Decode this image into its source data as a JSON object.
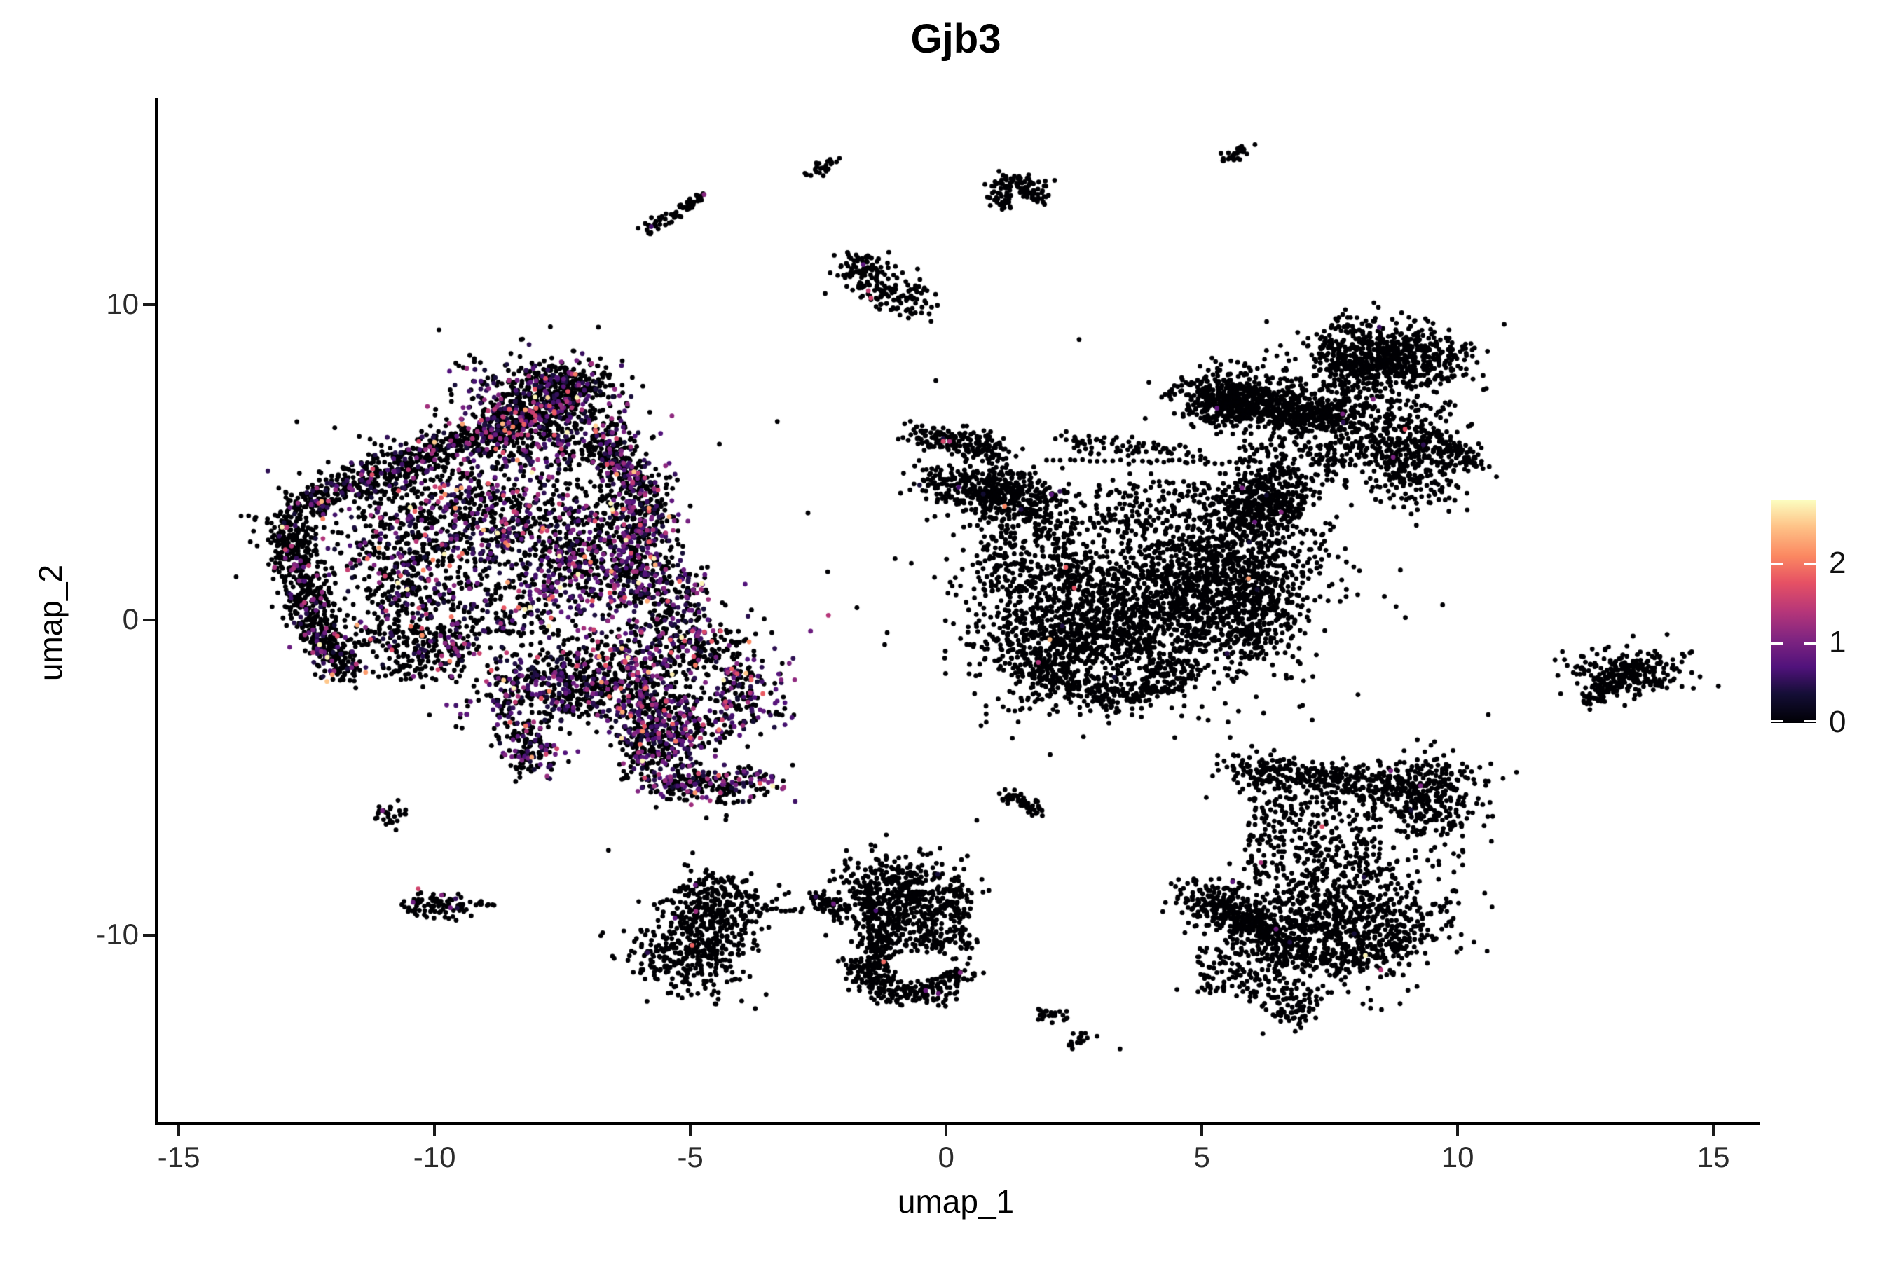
{
  "title": "Gjb3",
  "axes": {
    "x": {
      "label": "umap_1",
      "ticks": [
        -15,
        -10,
        -5,
        0,
        5,
        10,
        15
      ]
    },
    "y": {
      "label": "umap_2",
      "ticks": [
        -10,
        0,
        10
      ]
    }
  },
  "colorbar": {
    "ticks": [
      0,
      1,
      2
    ],
    "max": 2.8,
    "stops": [
      [
        0.0,
        "#000004"
      ],
      [
        0.13,
        "#140e36"
      ],
      [
        0.25,
        "#50127b"
      ],
      [
        0.38,
        "#812581"
      ],
      [
        0.5,
        "#b63679"
      ],
      [
        0.63,
        "#e65164"
      ],
      [
        0.75,
        "#fb8861"
      ],
      [
        0.88,
        "#fec287"
      ],
      [
        1.0,
        "#fcfdbf"
      ]
    ]
  },
  "chart_data": {
    "type": "scatter",
    "title": "Gjb3",
    "xlabel": "umap_1",
    "ylabel": "umap_2",
    "xlim": [
      -15.44,
      15.82
    ],
    "ylim": [
      -15.93,
      16.56
    ],
    "x_ticks": [
      -15,
      -10,
      -5,
      0,
      5,
      10,
      15
    ],
    "y_ticks": [
      -10,
      0,
      10
    ],
    "legend_position": "right",
    "grid": false,
    "point_radius": 3.4,
    "zero_color": "#000004",
    "expression_max": 2.8,
    "expression_scale": {
      "base": 0.3,
      "tail": 0.55,
      "cap": 2.75
    },
    "clusters": [
      {
        "t": "b",
        "n": 480,
        "x1": -12.75,
        "y1": 3.55,
        "x2": -9.1,
        "y2": 5.85,
        "sd": 0.28,
        "r": 0.18
      },
      {
        "t": "b",
        "n": 300,
        "x1": -9.1,
        "y1": 5.85,
        "x2": -7.4,
        "y2": 7.1,
        "sd": 0.3,
        "r": 0.22
      },
      {
        "t": "g",
        "n": 620,
        "x": -7.9,
        "y": 6.4,
        "sx": 0.85,
        "sy": 0.95,
        "r": 0.3
      },
      {
        "t": "g",
        "n": 190,
        "x": -7.5,
        "y": 7.6,
        "sx": 0.5,
        "sy": 0.3,
        "r": 0.2
      },
      {
        "t": "b",
        "n": 430,
        "x1": -12.95,
        "y1": 3.3,
        "x2": -12.35,
        "y2": -0.1,
        "sd": 0.26,
        "r": 0.1
      },
      {
        "t": "b",
        "n": 210,
        "x1": -12.45,
        "y1": -0.1,
        "x2": -11.7,
        "y2": -1.85,
        "sd": 0.22,
        "r": 0.15
      },
      {
        "t": "p",
        "pts": [
          [
            -12.0,
            -1.73,
            2.2
          ],
          [
            -11.62,
            -1.5,
            1.0
          ],
          [
            -12.3,
            -0.95,
            0.6
          ]
        ]
      },
      {
        "t": "b",
        "n": 300,
        "x1": -6.75,
        "y1": 5.95,
        "x2": -5.92,
        "y2": 3.8,
        "sd": 0.3,
        "r": 0.3
      },
      {
        "t": "b",
        "n": 290,
        "x1": -5.92,
        "y1": 3.8,
        "x2": -6.05,
        "y2": 0.9,
        "sd": 0.33,
        "r": 0.35
      },
      {
        "t": "g",
        "n": 500,
        "x": -9.9,
        "y": 3.6,
        "sx": 1.15,
        "sy": 1.0,
        "r": 0.3
      },
      {
        "t": "g",
        "n": 500,
        "x": -8.2,
        "y": 2.6,
        "sx": 1.2,
        "sy": 1.1,
        "r": 0.36
      },
      {
        "t": "g",
        "n": 400,
        "x": -6.9,
        "y": 1.7,
        "sx": 0.9,
        "sy": 1.0,
        "r": 0.42
      },
      {
        "t": "g",
        "n": 280,
        "x": -10.7,
        "y": 1.5,
        "sx": 0.8,
        "sy": 0.9,
        "r": 0.22
      },
      {
        "t": "u",
        "n": 220,
        "x": -9.3,
        "y": 0.35,
        "w": 3.6,
        "h": 1.7,
        "r": 0.28
      },
      {
        "t": "b",
        "n": 170,
        "x1": -11.9,
        "y1": -0.45,
        "x2": -9.2,
        "y2": -0.85,
        "sd": 0.3,
        "r": 0.2
      },
      {
        "t": "u",
        "n": 90,
        "x": -10.3,
        "y": -1.35,
        "w": 1.7,
        "h": 1.1,
        "r": 0.2
      },
      {
        "t": "u",
        "n": 150,
        "x": -5.35,
        "y": 0.5,
        "w": 1.5,
        "h": 2.0,
        "r": 0.42
      },
      {
        "t": "g",
        "n": 170,
        "x": -4.8,
        "y": -0.85,
        "sx": 0.5,
        "sy": 0.55,
        "r": 0.22
      },
      {
        "t": "g",
        "n": 430,
        "x": -7.8,
        "y": -2.1,
        "sx": 0.85,
        "sy": 0.65,
        "r": 0.36
      },
      {
        "t": "g",
        "n": 380,
        "x": -6.3,
        "y": -1.7,
        "sx": 0.8,
        "sy": 0.75,
        "r": 0.4
      },
      {
        "t": "b",
        "n": 250,
        "x1": -6.1,
        "y1": -2.6,
        "x2": -5.0,
        "y2": -4.15,
        "sd": 0.4,
        "r": 0.36
      },
      {
        "t": "a",
        "n": 360,
        "x": -4.7,
        "y": -4.15,
        "rad": 1.25,
        "a1": 150,
        "a2": 330,
        "sd": 0.3,
        "r": 0.33
      },
      {
        "t": "b",
        "n": 140,
        "x1": -8.35,
        "y1": -3.3,
        "x2": -7.95,
        "y2": -4.8,
        "sd": 0.28,
        "r": 0.28
      },
      {
        "t": "p",
        "pts": [
          [
            -8.1,
            -4.35,
            2.3
          ],
          [
            -7.8,
            -4.95,
            1.2
          ]
        ]
      },
      {
        "t": "b",
        "n": 120,
        "x1": -4.25,
        "y1": -3.6,
        "x2": -4.05,
        "y2": -1.35,
        "sd": 0.22,
        "r": 0.38
      },
      {
        "t": "u",
        "n": 90,
        "x": -5.4,
        "y": -3.1,
        "w": 1.4,
        "h": 1.5,
        "r": 0.38
      },
      {
        "t": "u",
        "n": 60,
        "x": -3.5,
        "y": -2.3,
        "w": 1.1,
        "h": 2.2,
        "r": 0.5
      },
      {
        "t": "p",
        "pts": [
          [
            -2.65,
            -0.35,
            0.9
          ],
          [
            -2.3,
            0.15,
            1.4
          ],
          [
            -3.2,
            -5.35,
            1.1
          ],
          [
            -2.95,
            -5.75,
            0.6
          ],
          [
            -3.35,
            -0.9,
            0.5
          ],
          [
            -3.0,
            -4.6,
            0
          ]
        ]
      },
      {
        "t": "b",
        "n": 65,
        "x1": -5.9,
        "y1": 12.35,
        "x2": -4.78,
        "y2": 13.42,
        "sd": 0.1,
        "r": 0.02
      },
      {
        "t": "p",
        "pts": [
          [
            -4.73,
            13.5,
            1.1
          ]
        ]
      },
      {
        "t": "b",
        "n": 26,
        "x1": -2.7,
        "y1": 14.1,
        "x2": -2.15,
        "y2": 14.62,
        "sd": 0.09,
        "r": 0
      },
      {
        "t": "a",
        "n": 120,
        "x": 1.35,
        "y": 13.55,
        "rad": 0.42,
        "a1": -40,
        "a2": 260,
        "sd": 0.15,
        "r": 0
      },
      {
        "t": "b",
        "n": 28,
        "x1": 5.35,
        "y1": 14.5,
        "x2": 5.95,
        "y2": 15.05,
        "sd": 0.09,
        "r": 0
      },
      {
        "t": "g",
        "n": 85,
        "x": -1.6,
        "y": 11.15,
        "sx": 0.27,
        "sy": 0.3,
        "r": 0
      },
      {
        "t": "b",
        "n": 110,
        "x1": -1.55,
        "y1": 10.75,
        "x2": -0.5,
        "y2": 10.0,
        "sd": 0.27,
        "r": 0
      },
      {
        "t": "p",
        "pts": [
          [
            -1.62,
            11.28,
            0.8
          ],
          [
            -1.52,
            10.45,
            1.5
          ],
          [
            -1.47,
            10.22,
            1.6
          ]
        ]
      },
      {
        "t": "b",
        "n": 190,
        "x1": -0.5,
        "y1": 5.95,
        "x2": 1.1,
        "y2": 5.3,
        "sd": 0.22,
        "r": 0.01
      },
      {
        "t": "row",
        "n": 30,
        "x1": 1.9,
        "x2": 6.2,
        "y": 5.02,
        "j": 0.07
      },
      {
        "t": "row",
        "n": 14,
        "x1": 0.35,
        "x2": 1.8,
        "y": 4.62,
        "j": 0.06
      },
      {
        "t": "b",
        "n": 250,
        "x1": -0.3,
        "y1": 4.45,
        "x2": 2.2,
        "y2": 3.75,
        "sd": 0.3,
        "r": 0.01
      },
      {
        "t": "g",
        "n": 180,
        "x": 0.95,
        "y": 3.95,
        "sx": 0.5,
        "sy": 0.45,
        "r": 0.01
      },
      {
        "t": "g",
        "n": 1450,
        "x": 3.9,
        "y": 0.7,
        "sx": 1.55,
        "sy": 1.45,
        "r": 0.004
      },
      {
        "t": "g",
        "n": 680,
        "x": 2.4,
        "y": -0.7,
        "sx": 1.0,
        "sy": 1.05,
        "r": 0.004
      },
      {
        "t": "g",
        "n": 480,
        "x": 5.4,
        "y": 1.6,
        "sx": 0.85,
        "sy": 0.95,
        "r": 0.004
      },
      {
        "t": "g",
        "n": 280,
        "x": 5.9,
        "y": 0.2,
        "sx": 0.6,
        "sy": 0.8,
        "r": 0.004
      },
      {
        "t": "a",
        "n": 250,
        "x": 3.3,
        "y": -0.9,
        "rad": 1.5,
        "a1": 195,
        "a2": 345,
        "sd": 0.25,
        "r": 0.004
      },
      {
        "t": "u",
        "n": 230,
        "x": 1.6,
        "y": 2.2,
        "w": 2.0,
        "h": 2.6,
        "r": 0.01
      },
      {
        "t": "u",
        "n": 190,
        "x": 4.6,
        "y": 3.6,
        "w": 3.4,
        "h": 1.6,
        "r": 0.005
      },
      {
        "t": "b",
        "n": 200,
        "x1": 5.9,
        "y1": 3.1,
        "x2": 6.6,
        "y2": 4.35,
        "sd": 0.35,
        "r": 0.005
      },
      {
        "t": "g",
        "n": 150,
        "x": 6.35,
        "y": 3.75,
        "sx": 0.5,
        "sy": 0.5,
        "r": 0.005
      },
      {
        "t": "b",
        "n": 680,
        "x1": 5.05,
        "y1": 7.1,
        "x2": 7.9,
        "y2": 6.35,
        "sd": 0.42,
        "r": 0.004
      },
      {
        "t": "g",
        "n": 260,
        "x": 5.6,
        "y": 7.0,
        "sx": 0.6,
        "sy": 0.5,
        "r": 0.004
      },
      {
        "t": "g",
        "n": 400,
        "x": 8.3,
        "y": 8.55,
        "sx": 0.7,
        "sy": 0.5,
        "r": 0.004
      },
      {
        "t": "b",
        "n": 110,
        "x1": 7.7,
        "y1": 7.5,
        "x2": 8.1,
        "y2": 8.2,
        "sd": 0.3,
        "r": 0
      },
      {
        "t": "g",
        "n": 280,
        "x": 9.1,
        "y": 8.1,
        "sx": 0.55,
        "sy": 0.5,
        "r": 0.004
      },
      {
        "t": "g",
        "n": 400,
        "x": 9.15,
        "y": 5.3,
        "sx": 0.55,
        "sy": 0.85,
        "r": 0.004
      },
      {
        "t": "b",
        "n": 55,
        "x1": 9.9,
        "y1": 5.5,
        "x2": 10.45,
        "y2": 4.85,
        "sd": 0.12,
        "r": 0
      },
      {
        "t": "u",
        "n": 210,
        "x": 7.6,
        "y": 6.0,
        "w": 2.6,
        "h": 2.2,
        "r": 0.004
      },
      {
        "t": "u",
        "n": 110,
        "x": 6.8,
        "y": 4.9,
        "w": 2.2,
        "h": 1.4,
        "r": 0.004
      },
      {
        "t": "b",
        "n": 80,
        "x1": 2.3,
        "y1": 5.75,
        "x2": 5.0,
        "y2": 5.25,
        "sd": 0.16,
        "r": 0
      },
      {
        "t": "g",
        "n": 250,
        "x": 13.35,
        "y": -1.7,
        "sx": 0.55,
        "sy": 0.42,
        "r": 0.004
      },
      {
        "t": "b",
        "n": 65,
        "x1": 12.6,
        "y1": -2.55,
        "x2": 13.05,
        "y2": -2.0,
        "sd": 0.13,
        "r": 0
      },
      {
        "t": "b",
        "n": 400,
        "x1": 5.6,
        "y1": -4.75,
        "x2": 9.0,
        "y2": -5.3,
        "sd": 0.3,
        "r": 0.004
      },
      {
        "t": "g",
        "n": 300,
        "x": 9.45,
        "y": -5.6,
        "sx": 0.5,
        "sy": 0.75,
        "r": 0.004
      },
      {
        "t": "b",
        "n": 360,
        "x1": 4.85,
        "y1": -8.75,
        "x2": 6.5,
        "y2": -9.9,
        "sd": 0.35,
        "r": 0.005
      },
      {
        "t": "g",
        "n": 850,
        "x": 7.8,
        "y": -9.5,
        "sx": 1.05,
        "sy": 0.95,
        "r": 0.004
      },
      {
        "t": "a",
        "n": 190,
        "x": 7.6,
        "y": -9.3,
        "rad": 1.6,
        "a1": 200,
        "a2": 330,
        "sd": 0.25,
        "r": 0
      },
      {
        "t": "u",
        "n": 280,
        "x": 7.2,
        "y": -6.9,
        "w": 2.6,
        "h": 2.6,
        "r": 0.004
      },
      {
        "t": "u",
        "n": 130,
        "x": 5.8,
        "y": -11.2,
        "w": 1.8,
        "h": 1.6,
        "r": 0.004
      },
      {
        "t": "g",
        "n": 85,
        "x": 6.75,
        "y": -12.2,
        "sx": 0.28,
        "sy": 0.35,
        "r": 0
      },
      {
        "t": "p",
        "pts": [
          [
            8.5,
            -11.1,
            1.4
          ],
          [
            6.45,
            -9.8,
            0.9
          ],
          [
            7.35,
            -6.55,
            1.7
          ],
          [
            5.6,
            -8.3,
            0.8
          ]
        ]
      },
      {
        "t": "g",
        "n": 290,
        "x": -4.55,
        "y": -9.1,
        "sx": 0.5,
        "sy": 0.55,
        "r": 0.004
      },
      {
        "t": "g",
        "n": 330,
        "x": -5.05,
        "y": -10.6,
        "sx": 0.55,
        "sy": 0.6,
        "r": 0.004
      },
      {
        "t": "row",
        "n": 15,
        "x1": -3.85,
        "x2": -2.75,
        "y": -9.2,
        "j": 0.06
      },
      {
        "t": "b",
        "n": 65,
        "x1": -2.55,
        "y1": -8.75,
        "x2": -2.0,
        "y2": -9.3,
        "sd": 0.12,
        "r": 0.01
      },
      {
        "t": "p",
        "pts": [
          [
            -4.9,
            -8.4,
            0.9
          ],
          [
            -5.3,
            -9.45,
            0.8
          ],
          [
            -2.2,
            -9.0,
            0.9
          ],
          [
            -2.05,
            -9.6,
            0
          ],
          [
            -1.85,
            -10.2,
            0
          ],
          [
            -2.35,
            -10.0,
            0
          ]
        ]
      },
      {
        "t": "g",
        "n": 230,
        "x": -0.95,
        "y": -8.3,
        "sx": 0.6,
        "sy": 0.5,
        "r": 0.004
      },
      {
        "t": "b",
        "n": 250,
        "x1": -1.5,
        "y1": -8.5,
        "x2": -1.27,
        "y2": -11.2,
        "sd": 0.2,
        "r": 0.004
      },
      {
        "t": "u",
        "n": 210,
        "x": -0.6,
        "y": -9.6,
        "w": 1.1,
        "h": 1.9,
        "r": 0.004
      },
      {
        "t": "a",
        "n": 250,
        "x": -0.7,
        "y": -10.9,
        "rad": 1.0,
        "a1": 170,
        "a2": 350,
        "sd": 0.22,
        "r": 0.008
      },
      {
        "t": "b",
        "n": 110,
        "x1": 0.15,
        "y1": -8.4,
        "x2": 0.3,
        "y2": -10.6,
        "sd": 0.18,
        "r": 0
      },
      {
        "t": "p",
        "pts": [
          [
            -0.4,
            -11.75,
            0.9
          ],
          [
            -0.15,
            -11.85,
            0.9
          ],
          [
            0.3,
            -7.6,
            0
          ],
          [
            -0.3,
            -7.4,
            0
          ]
        ]
      },
      {
        "t": "g",
        "n": 28,
        "x": -10.85,
        "y": -6.2,
        "sx": 0.18,
        "sy": 0.15,
        "r": 0
      },
      {
        "t": "p",
        "pts": [
          [
            -11.02,
            -6.05,
            1.0
          ]
        ]
      },
      {
        "t": "g",
        "n": 85,
        "x": -9.85,
        "y": -9.05,
        "sx": 0.42,
        "sy": 0.2,
        "r": 0.02
      },
      {
        "t": "row",
        "n": 7,
        "x1": -9.2,
        "x2": -8.8,
        "y": -9.03,
        "j": 0.05
      },
      {
        "t": "p",
        "pts": [
          [
            -10.32,
            -8.52,
            1.6
          ],
          [
            -10.42,
            -8.95,
            0.9
          ]
        ]
      },
      {
        "t": "b",
        "n": 40,
        "x1": 1.3,
        "y1": -5.6,
        "x2": 1.78,
        "y2": -6.02,
        "sd": 0.11,
        "r": 0
      },
      {
        "t": "g",
        "n": 18,
        "x": 1.27,
        "y": -5.62,
        "sx": 0.12,
        "sy": 0.1,
        "r": 0
      },
      {
        "t": "g",
        "n": 24,
        "x": 2.05,
        "y": -12.5,
        "sx": 0.2,
        "sy": 0.15,
        "r": 0
      },
      {
        "t": "g",
        "n": 16,
        "x": 2.62,
        "y": -13.3,
        "sx": 0.15,
        "sy": 0.11,
        "r": 0
      },
      {
        "t": "p",
        "pts": [
          [
            -0.2,
            7.6,
            0
          ],
          [
            2.6,
            8.9,
            0
          ],
          [
            -3.3,
            6.3,
            0
          ],
          [
            -2.7,
            3.4,
            0
          ],
          [
            0.6,
            -6.35,
            0
          ],
          [
            3.4,
            -13.6,
            0
          ],
          [
            -6.6,
            -7.3,
            0
          ],
          [
            12.95,
            -0.85,
            0
          ],
          [
            10.6,
            -3.0,
            0
          ]
        ]
      }
    ]
  }
}
